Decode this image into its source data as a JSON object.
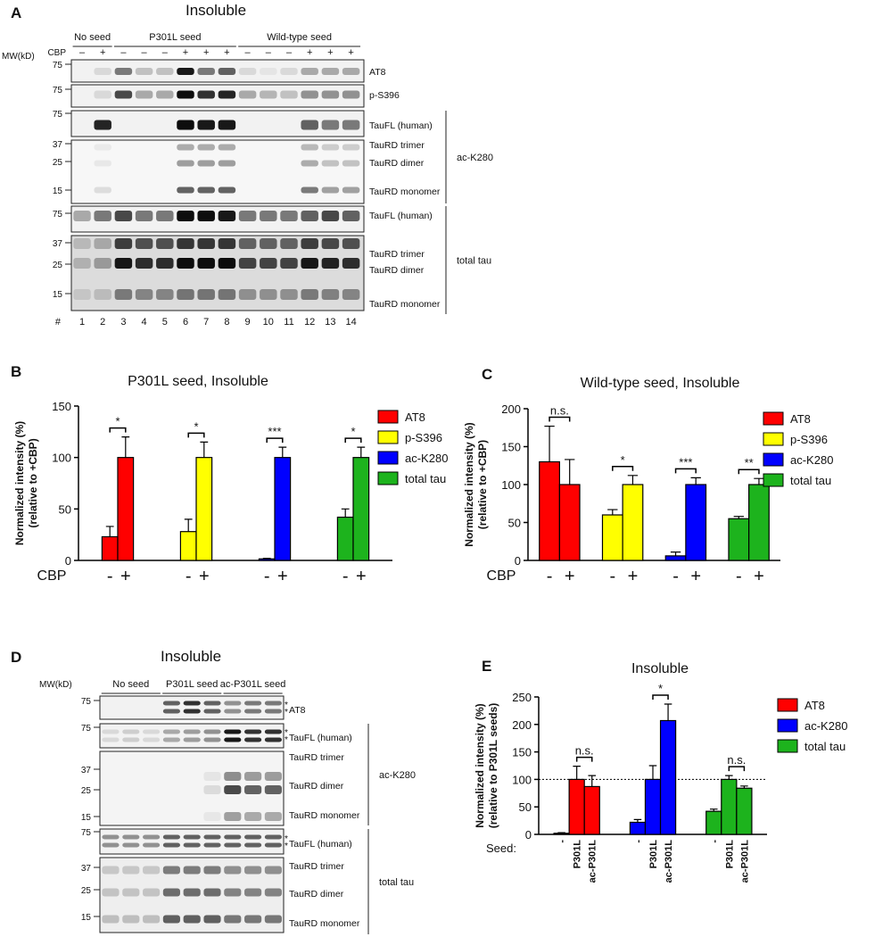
{
  "panel_a": {
    "label": "A",
    "title": "Insoluble",
    "mw_header": "MW(kD)",
    "cbp_label": "CBP",
    "groups": [
      "No seed",
      "P301L seed",
      "Wild-type seed"
    ],
    "cbp": [
      "–",
      "+",
      "–",
      "–",
      "–",
      "+",
      "+",
      "+",
      "–",
      "–",
      "–",
      "+",
      "+",
      "+"
    ],
    "lane_header": "#",
    "lanes": [
      "1",
      "2",
      "3",
      "4",
      "5",
      "6",
      "7",
      "8",
      "9",
      "10",
      "11",
      "12",
      "13",
      "14"
    ],
    "strips": [
      {
        "mw": [
          "75"
        ],
        "bands": [
          "AT8"
        ]
      },
      {
        "mw": [
          "75"
        ],
        "bands": [
          "p-S396"
        ]
      },
      {
        "mw": [
          "75"
        ],
        "bands": [
          "TauFL (human)"
        ]
      },
      {
        "mw": [
          "37",
          "25",
          "15"
        ],
        "bands": [
          "TauRD trimer",
          "TauRD dimer",
          "TauRD monomer"
        ]
      },
      {
        "mw": [
          "75"
        ],
        "bands": [
          "TauFL (human)"
        ]
      },
      {
        "mw": [
          "37",
          "25",
          "15"
        ],
        "bands": [
          "TauRD trimer",
          "TauRD dimer",
          "TauRD monomer"
        ]
      }
    ],
    "antibodies": [
      "ac-K280",
      "total tau"
    ]
  },
  "panel_d": {
    "label": "D",
    "title": "Insoluble",
    "mw_header": "MW(kD)",
    "groups": [
      "No seed",
      "P301L seed",
      "ac-P301L seed"
    ],
    "strips": [
      {
        "mw": [
          "75"
        ],
        "bands": [
          "AT8"
        ],
        "star": "*"
      },
      {
        "mw": [
          "75"
        ],
        "bands": [
          "TauFL (human)"
        ],
        "star": "*"
      },
      {
        "mw": [
          "37",
          "25",
          "15"
        ],
        "bands": [
          "TauRD trimer",
          "TauRD dimer",
          "TauRD monomer"
        ]
      },
      {
        "mw": [
          "75"
        ],
        "bands": [
          "TauFL (human)"
        ],
        "star": "*"
      },
      {
        "mw": [
          "37",
          "25",
          "15"
        ],
        "bands": [
          "TauRD trimer",
          "TauRD dimer",
          "TauRD monomer"
        ]
      }
    ],
    "antibodies": [
      "ac-K280",
      "total tau"
    ]
  },
  "chart_data": [
    {
      "panel": "B",
      "type": "bar",
      "title": "P301L seed, Insoluble",
      "y_label": [
        "Normalized intensity (%)",
        "(relative to +CBP)"
      ],
      "x_label": "CBP",
      "categories": [
        "-",
        "+"
      ],
      "ylim": [
        0,
        150
      ],
      "yticks": [
        0,
        50,
        100,
        150
      ],
      "series": [
        {
          "name": "AT8",
          "color": "#ff0000",
          "values": [
            23,
            100
          ],
          "errors": [
            10,
            20
          ],
          "significance": "*"
        },
        {
          "name": "p-S396",
          "color": "#ffff00",
          "values": [
            28,
            100
          ],
          "errors": [
            12,
            15
          ],
          "significance": "*"
        },
        {
          "name": "ac-K280",
          "color": "#0000ff",
          "values": [
            1.5,
            100
          ],
          "errors": [
            0.5,
            10
          ],
          "significance": "***"
        },
        {
          "name": "total tau",
          "color": "#1db31d",
          "values": [
            42,
            100
          ],
          "errors": [
            8,
            10
          ],
          "significance": "*"
        }
      ],
      "legend": "right"
    },
    {
      "panel": "C",
      "type": "bar",
      "title": "Wild-type seed, Insoluble",
      "y_label": [
        "Normalized intensity (%)",
        "(relative to +CBP)"
      ],
      "x_label": "CBP",
      "categories": [
        "-",
        "+"
      ],
      "ylim": [
        0,
        200
      ],
      "yticks": [
        0,
        50,
        100,
        150,
        200
      ],
      "series": [
        {
          "name": "AT8",
          "color": "#ff0000",
          "values": [
            130,
            100
          ],
          "errors": [
            47,
            33
          ],
          "significance": "n.s."
        },
        {
          "name": "p-S396",
          "color": "#ffff00",
          "values": [
            60,
            100
          ],
          "errors": [
            7,
            12
          ],
          "significance": "*"
        },
        {
          "name": "ac-K280",
          "color": "#0000ff",
          "values": [
            6,
            100
          ],
          "errors": [
            5,
            9
          ],
          "significance": "***"
        },
        {
          "name": "total tau",
          "color": "#1db31d",
          "values": [
            55,
            100
          ],
          "errors": [
            3,
            8
          ],
          "significance": "**"
        }
      ],
      "legend": "right"
    },
    {
      "panel": "E",
      "type": "bar",
      "title": "Insoluble",
      "y_label": [
        "Normalized intensity (%)",
        "(relative to P301L seeds)"
      ],
      "x_label": "Seed:",
      "categories": [
        "-",
        "P301L",
        "ac-P301L"
      ],
      "ylim": [
        0,
        250
      ],
      "yticks": [
        0,
        50,
        100,
        150,
        200,
        250
      ],
      "reference_line": 100,
      "series": [
        {
          "name": "AT8",
          "color": "#ff0000",
          "values": [
            2,
            100,
            87
          ],
          "errors": [
            1,
            24,
            20
          ],
          "significance": "n.s."
        },
        {
          "name": "ac-K280",
          "color": "#0000ff",
          "values": [
            22,
            100,
            207
          ],
          "errors": [
            5,
            25,
            30
          ],
          "significance": "*"
        },
        {
          "name": "total tau",
          "color": "#1db31d",
          "values": [
            42,
            100,
            84
          ],
          "errors": [
            4,
            7,
            4
          ],
          "significance": "n.s."
        }
      ],
      "legend": "right"
    }
  ]
}
